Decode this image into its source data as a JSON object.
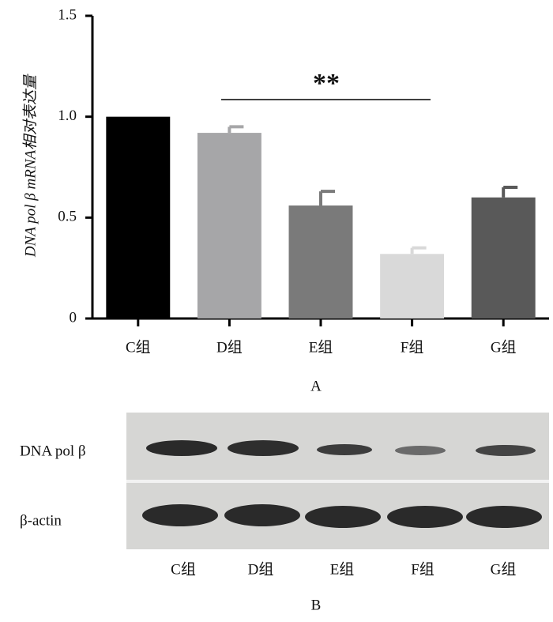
{
  "chart_data": {
    "type": "bar",
    "y_label": "DNA pol β mRNA相对表达量",
    "x_label": "A",
    "categories": [
      "C组",
      "D组",
      "E组",
      "F组",
      "G组"
    ],
    "values": [
      1,
      0.92,
      0.56,
      0.32,
      0.6
    ],
    "errors": [
      null,
      0.03,
      0.07,
      0.03,
      0.05
    ],
    "colors": [
      "#000000",
      "#a6a6a8",
      "#7a7a7a",
      "#d9d9d9",
      "#595959"
    ],
    "ylim": [
      0,
      1.5
    ],
    "yticks": [
      0,
      0.5,
      {
        "value": 1,
        "label": "1.0"
      },
      1.5
    ],
    "annotation": "**"
  },
  "blot": {
    "row_labels": [
      "DNA pol β",
      "β-actin"
    ],
    "lane_labels": [
      "C组",
      "D组",
      "E组",
      "F组",
      "G组"
    ],
    "caption": "B"
  }
}
